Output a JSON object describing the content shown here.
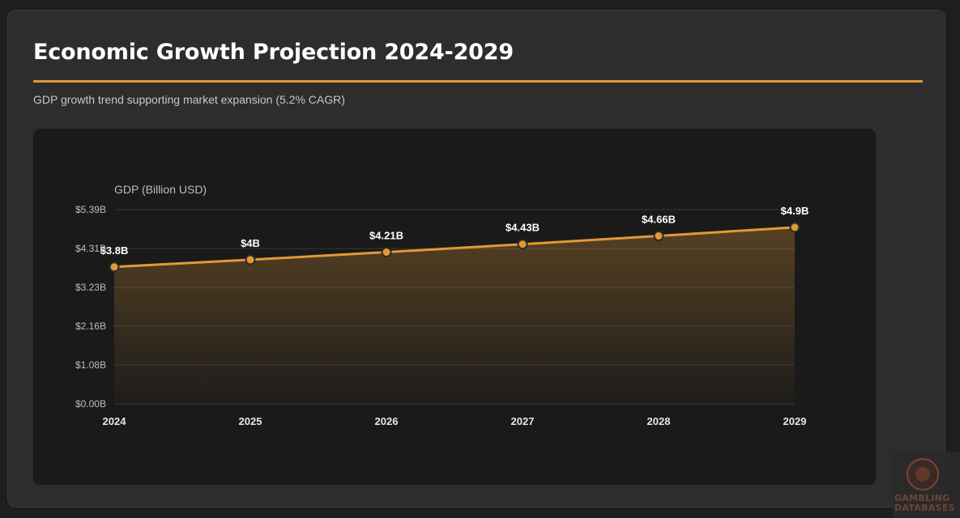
{
  "header": {
    "title": "Economic Growth Projection 2024-2029",
    "subtitle": "GDP growth trend supporting market expansion (5.2% CAGR)"
  },
  "colors": {
    "accent": "#e09a35",
    "card_bg": "#2d2d2d",
    "chart_bg": "#1a1a1a",
    "grid": "#383838",
    "text_muted": "#bdbdbd"
  },
  "watermark": {
    "line1": "GAMBLING",
    "line2": "DATABASES",
    "icon": "casino-chip-icon"
  },
  "chart_data": {
    "type": "area",
    "x": [
      "2024",
      "2025",
      "2026",
      "2027",
      "2028",
      "2029"
    ],
    "series": [
      {
        "values": [
          3.8,
          4.0,
          4.21,
          4.43,
          4.66,
          4.9
        ],
        "labels": [
          "$3.8B",
          "$4B",
          "$4.21B",
          "$4.43B",
          "$4.66B",
          "$4.9B"
        ]
      }
    ],
    "ylabel": "GDP (Billion USD)",
    "ylim": [
      0,
      5.39
    ],
    "y_ticks": [
      0,
      1.08,
      2.16,
      3.23,
      4.31,
      5.39
    ],
    "y_tick_labels": [
      "$0.00B",
      "$1.08B",
      "$2.16B",
      "$3.23B",
      "$4.31B",
      "$5.39B"
    ],
    "grid": true,
    "legend": "none"
  }
}
